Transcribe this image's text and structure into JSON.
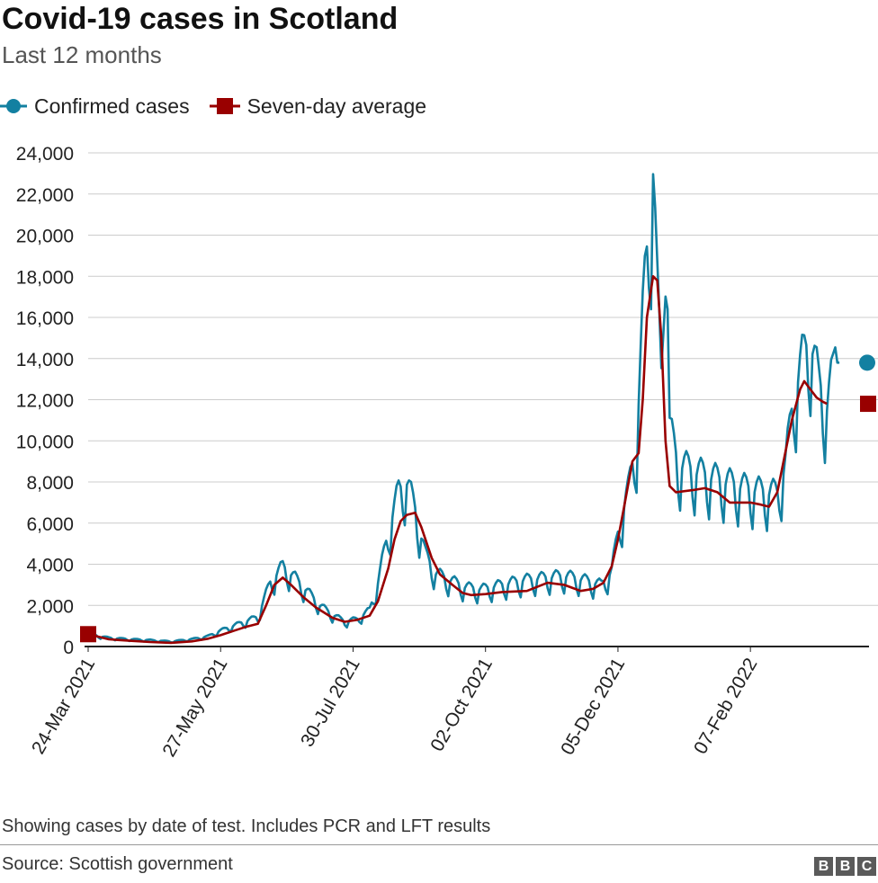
{
  "header": {
    "title": "Covid-19 cases in Scotland",
    "subtitle": "Last 12 months"
  },
  "legend": [
    {
      "label": "Confirmed cases",
      "color": "#1380a1",
      "marker": "circle"
    },
    {
      "label": "Seven-day average",
      "color": "#990000",
      "marker": "square"
    }
  ],
  "footer": {
    "note": "Showing cases by date of test. Includes PCR and LFT results",
    "source": "Source: Scottish government",
    "logo_letters": [
      "B",
      "B",
      "C"
    ]
  },
  "chart_data": {
    "type": "line",
    "ylim": [
      0,
      24000
    ],
    "yticks": [
      0,
      2000,
      4000,
      6000,
      8000,
      10000,
      12000,
      14000,
      16000,
      18000,
      20000,
      22000,
      24000
    ],
    "ytick_labels": [
      "0",
      "2,000",
      "4,000",
      "6,000",
      "8,000",
      "10,000",
      "12,000",
      "14,000",
      "16,000",
      "18,000",
      "20,000",
      "22,000",
      "24,000"
    ],
    "x_days": 376,
    "xticks": [
      {
        "label": "24-Mar 2021",
        "day": 0
      },
      {
        "label": "27-May 2021",
        "day": 64
      },
      {
        "label": "30-Jul 2021",
        "day": 128
      },
      {
        "label": "02-Oct 2021",
        "day": 192
      },
      {
        "label": "05-Dec 2021",
        "day": 256
      },
      {
        "label": "07-Feb 2022",
        "day": 320
      }
    ],
    "grid": true,
    "legend_position": "top-left",
    "series": [
      {
        "name": "Confirmed cases",
        "color": "#1380a1",
        "end_marker": "circle",
        "base_points": [
          [
            0,
            550
          ],
          [
            10,
            380
          ],
          [
            20,
            320
          ],
          [
            30,
            280
          ],
          [
            40,
            220
          ],
          [
            50,
            320
          ],
          [
            58,
            450
          ],
          [
            64,
            700
          ],
          [
            70,
            900
          ],
          [
            76,
            1100
          ],
          [
            82,
            1300
          ],
          [
            88,
            2800
          ],
          [
            94,
            3500
          ],
          [
            100,
            3000
          ],
          [
            106,
            2400
          ],
          [
            112,
            1800
          ],
          [
            118,
            1400
          ],
          [
            124,
            1100
          ],
          [
            130,
            1200
          ],
          [
            136,
            1600
          ],
          [
            140,
            2800
          ],
          [
            145,
            5000
          ],
          [
            150,
            6800
          ],
          [
            154,
            7200
          ],
          [
            158,
            6000
          ],
          [
            163,
            4000
          ],
          [
            168,
            3200
          ],
          [
            175,
            2900
          ],
          [
            182,
            2600
          ],
          [
            190,
            2500
          ],
          [
            200,
            2700
          ],
          [
            210,
            2900
          ],
          [
            220,
            3000
          ],
          [
            230,
            3100
          ],
          [
            240,
            2900
          ],
          [
            248,
            2700
          ],
          [
            253,
            3300
          ],
          [
            257,
            5500
          ],
          [
            261,
            6800
          ],
          [
            265,
            9000
          ],
          [
            269,
            16000
          ],
          [
            273,
            21000
          ],
          [
            275,
            15500
          ],
          [
            277,
            12000
          ],
          [
            279,
            20500
          ],
          [
            281,
            9500
          ],
          [
            285,
            8000
          ],
          [
            295,
            7600
          ],
          [
            305,
            7300
          ],
          [
            315,
            7000
          ],
          [
            325,
            6800
          ],
          [
            333,
            6700
          ],
          [
            337,
            8000
          ],
          [
            341,
            11000
          ],
          [
            345,
            12500
          ],
          [
            349,
            13500
          ],
          [
            353,
            11500
          ],
          [
            357,
            10500
          ],
          [
            360,
            12000
          ],
          [
            362,
            13800
          ]
        ],
        "weekly_amplitude": 0.17,
        "days": 363
      },
      {
        "name": "Seven-day average",
        "color": "#990000",
        "end_marker": "square",
        "points": [
          [
            0,
            600
          ],
          [
            10,
            350
          ],
          [
            20,
            280
          ],
          [
            30,
            220
          ],
          [
            40,
            180
          ],
          [
            50,
            250
          ],
          [
            58,
            380
          ],
          [
            64,
            550
          ],
          [
            70,
            750
          ],
          [
            76,
            950
          ],
          [
            82,
            1100
          ],
          [
            86,
            2000
          ],
          [
            90,
            3000
          ],
          [
            94,
            3350
          ],
          [
            98,
            3000
          ],
          [
            104,
            2400
          ],
          [
            110,
            1900
          ],
          [
            118,
            1400
          ],
          [
            124,
            1200
          ],
          [
            130,
            1300
          ],
          [
            136,
            1500
          ],
          [
            140,
            2200
          ],
          [
            145,
            3800
          ],
          [
            148,
            5200
          ],
          [
            151,
            6100
          ],
          [
            154,
            6400
          ],
          [
            158,
            6500
          ],
          [
            161,
            5800
          ],
          [
            166,
            4300
          ],
          [
            170,
            3500
          ],
          [
            176,
            3000
          ],
          [
            181,
            2600
          ],
          [
            185,
            2500
          ],
          [
            192,
            2550
          ],
          [
            200,
            2650
          ],
          [
            212,
            2700
          ],
          [
            222,
            3100
          ],
          [
            230,
            3000
          ],
          [
            238,
            2700
          ],
          [
            244,
            2800
          ],
          [
            249,
            3100
          ],
          [
            253,
            3900
          ],
          [
            256,
            5200
          ],
          [
            259,
            6800
          ],
          [
            263,
            9000
          ],
          [
            266,
            9400
          ],
          [
            268,
            12000
          ],
          [
            270,
            16000
          ],
          [
            273,
            18000
          ],
          [
            275,
            17800
          ],
          [
            277,
            15000
          ],
          [
            279,
            10000
          ],
          [
            281,
            7800
          ],
          [
            284,
            7500
          ],
          [
            292,
            7600
          ],
          [
            298,
            7700
          ],
          [
            304,
            7500
          ],
          [
            310,
            7000
          ],
          [
            320,
            7000
          ],
          [
            325,
            6900
          ],
          [
            329,
            6800
          ],
          [
            333,
            7500
          ],
          [
            336,
            9000
          ],
          [
            340,
            11000
          ],
          [
            344,
            12500
          ],
          [
            346,
            12900
          ],
          [
            349,
            12500
          ],
          [
            352,
            12100
          ],
          [
            355,
            11900
          ],
          [
            357,
            11800
          ]
        ]
      }
    ]
  }
}
